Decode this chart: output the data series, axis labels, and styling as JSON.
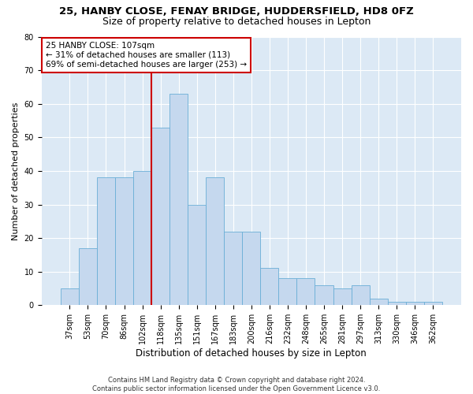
{
  "title1": "25, HANBY CLOSE, FENAY BRIDGE, HUDDERSFIELD, HD8 0FZ",
  "title2": "Size of property relative to detached houses in Lepton",
  "xlabel": "Distribution of detached houses by size in Lepton",
  "ylabel": "Number of detached properties",
  "categories": [
    "37sqm",
    "53sqm",
    "70sqm",
    "86sqm",
    "102sqm",
    "118sqm",
    "135sqm",
    "151sqm",
    "167sqm",
    "183sqm",
    "200sqm",
    "216sqm",
    "232sqm",
    "248sqm",
    "265sqm",
    "281sqm",
    "297sqm",
    "313sqm",
    "330sqm",
    "346sqm",
    "362sqm"
  ],
  "values": [
    5,
    17,
    38,
    38,
    40,
    53,
    63,
    30,
    38,
    22,
    22,
    11,
    8,
    8,
    6,
    5,
    6,
    2,
    1,
    1,
    1
  ],
  "bar_color": "#c5d8ee",
  "bar_edge_color": "#6aaed6",
  "bar_width": 1.0,
  "vline_x": 4.5,
  "vline_color": "#cc0000",
  "annotation_line1": "25 HANBY CLOSE: 107sqm",
  "annotation_line2": "← 31% of detached houses are smaller (113)",
  "annotation_line3": "69% of semi-detached houses are larger (253) →",
  "annotation_box_color": "#ffffff",
  "annotation_box_edge": "#cc0000",
  "ylim": [
    0,
    80
  ],
  "yticks": [
    0,
    10,
    20,
    30,
    40,
    50,
    60,
    70,
    80
  ],
  "footnote": "Contains HM Land Registry data © Crown copyright and database right 2024.\nContains public sector information licensed under the Open Government Licence v3.0.",
  "bg_color": "#ffffff",
  "plot_bg_color": "#dce9f5",
  "grid_color": "#ffffff",
  "title1_fontsize": 9.5,
  "title2_fontsize": 9,
  "xlabel_fontsize": 8.5,
  "ylabel_fontsize": 8,
  "tick_fontsize": 7,
  "annotation_fontsize": 7.5,
  "footnote_fontsize": 6
}
